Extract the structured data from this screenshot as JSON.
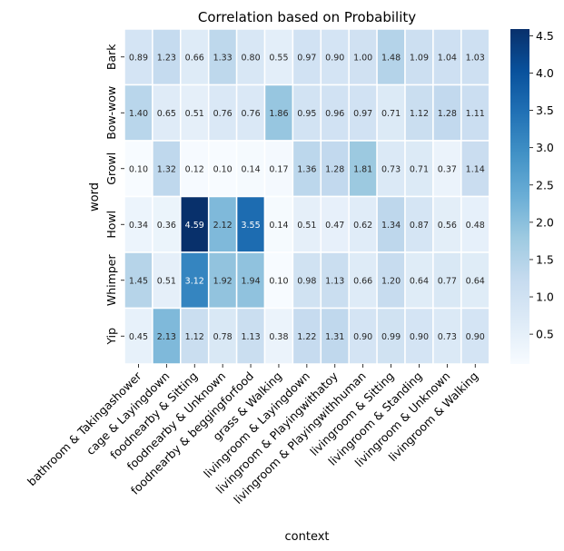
{
  "chart_data": {
    "type": "heatmap",
    "title": "Correlation based on Probability",
    "xlabel": "context",
    "ylabel": "word",
    "x_categories": [
      "bathroom & Takingashower",
      "cage & Layingdown",
      "foodnearby & Sitting",
      "foodnearby & Unknown",
      "foodnearby & beggingforfood",
      "grass & Walking",
      "livingroom & Layingdown",
      "livingroom & Playingwithatoy",
      "livingroom & Playingwithhuman",
      "livingroom & Sitting",
      "livingroom & Standing",
      "livingroom & Unknown",
      "livingroom & Walking"
    ],
    "y_categories": [
      "Bark",
      "Bow-wow",
      "Growl",
      "Howl",
      "Whimper",
      "Yip"
    ],
    "values": [
      [
        0.89,
        1.23,
        0.66,
        1.33,
        0.8,
        0.55,
        0.97,
        0.9,
        1.0,
        1.48,
        1.09,
        1.04,
        1.03
      ],
      [
        1.4,
        0.65,
        0.51,
        0.76,
        0.76,
        1.86,
        0.95,
        0.96,
        0.97,
        0.71,
        1.12,
        1.28,
        1.11
      ],
      [
        0.1,
        1.32,
        0.12,
        0.1,
        0.14,
        0.17,
        1.36,
        1.28,
        1.81,
        0.73,
        0.71,
        0.37,
        1.14
      ],
      [
        0.34,
        0.36,
        4.59,
        2.12,
        3.55,
        0.14,
        0.51,
        0.47,
        0.62,
        1.34,
        0.87,
        0.56,
        0.48
      ],
      [
        1.45,
        0.51,
        3.12,
        1.92,
        1.94,
        0.1,
        0.98,
        1.13,
        0.66,
        1.2,
        0.64,
        0.77,
        0.64
      ],
      [
        0.45,
        2.13,
        1.12,
        0.78,
        1.13,
        0.38,
        1.22,
        1.31,
        0.9,
        0.99,
        0.9,
        0.73,
        0.9
      ]
    ],
    "vmin": 0.1,
    "vmax": 4.59,
    "colormap": "Blues",
    "colorbar_ticks": [
      0.5,
      1.0,
      1.5,
      2.0,
      2.5,
      3.0,
      3.5,
      4.0,
      4.5
    ],
    "annotations": true,
    "cell_border_color": "#ffffff"
  }
}
